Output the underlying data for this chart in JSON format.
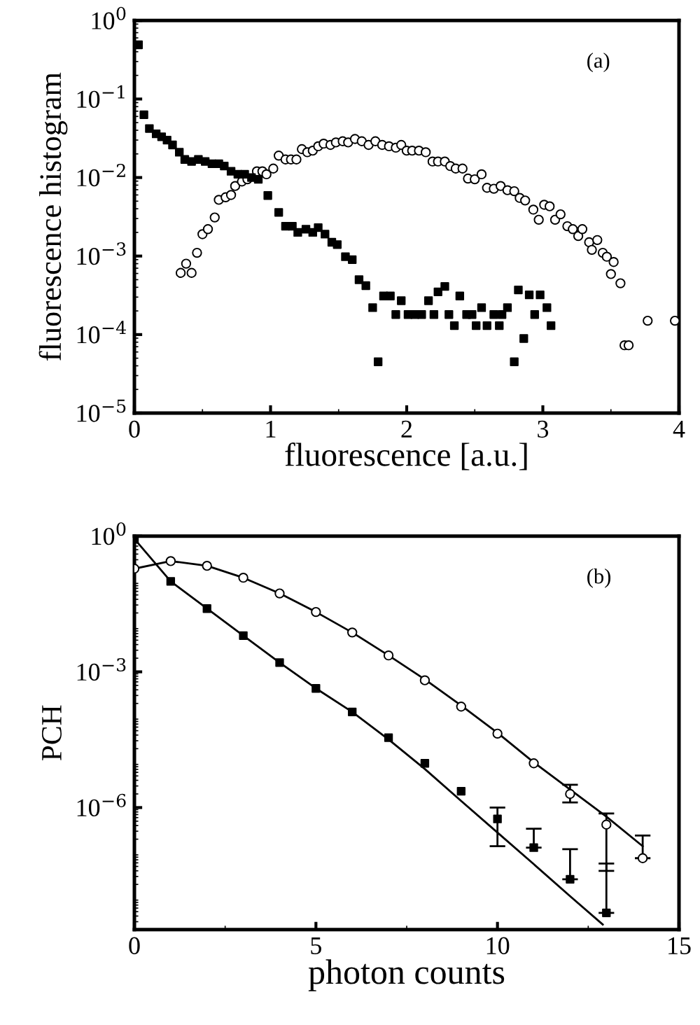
{
  "chart_data": [
    {
      "type": "scatter",
      "xlabel": "fluorescence [a.u.]",
      "ylabel": "fluorescence histogram",
      "annotations": [
        "(a)"
      ],
      "log": "y",
      "xlim": [
        0,
        4
      ],
      "ylim": [
        1e-05,
        1
      ],
      "xticks": [
        0,
        1,
        2,
        3,
        4
      ],
      "yticks": [
        {
          "value": 1,
          "label": "10$^{0}$"
        },
        {
          "value": 0.1,
          "label": "10$^{−1}$"
        },
        {
          "value": 0.01,
          "label": "10$^{−2}$"
        },
        {
          "value": 0.001,
          "label": "10$^{−3}$"
        },
        {
          "value": 0.0001,
          "label": "10$^{−4}$"
        },
        {
          "value": 1e-05,
          "label": "10$^{−5}$"
        }
      ],
      "grid": false,
      "legend": false,
      "series": [
        {
          "color": "#000000",
          "marker": "square",
          "x": [
            0.03,
            0.07,
            0.11,
            0.16,
            0.2,
            0.24,
            0.28,
            0.33,
            0.37,
            0.42,
            0.47,
            0.52,
            0.57,
            0.62,
            0.66,
            0.71,
            0.76,
            0.81,
            0.86,
            0.91,
            0.98,
            1.06,
            1.11,
            1.16,
            1.2,
            1.26,
            1.31,
            1.35,
            1.4,
            1.45,
            1.49,
            1.55,
            1.6,
            1.65,
            1.7,
            1.75,
            1.79,
            1.83,
            1.88,
            1.92,
            1.96,
            2.01,
            2.06,
            2.11,
            2.16,
            2.2,
            2.23,
            2.28,
            2.31,
            2.35,
            2.39,
            2.44,
            2.48,
            2.51,
            2.55,
            2.59,
            2.64,
            2.68,
            2.7,
            2.74,
            2.79,
            2.82,
            2.86,
            2.9,
            2.94,
            2.98,
            3.03,
            3.06
          ],
          "values": [
            0.49,
            0.063,
            0.042,
            0.036,
            0.033,
            0.03,
            0.026,
            0.021,
            0.017,
            0.016,
            0.017,
            0.016,
            0.015,
            0.015,
            0.014,
            0.012,
            0.011,
            0.011,
            0.01,
            0.0095,
            0.0059,
            0.0036,
            0.0024,
            0.0024,
            0.002,
            0.0022,
            0.002,
            0.0023,
            0.0019,
            0.0015,
            0.0014,
            0.00098,
            0.0009,
            0.0005,
            0.00042,
            0.00022,
            4.5e-05,
            0.00031,
            0.00031,
            0.00018,
            0.00027,
            0.00018,
            0.00018,
            0.00018,
            0.00027,
            0.00018,
            0.00035,
            0.00041,
            0.00018,
            0.00013,
            0.00031,
            0.00018,
            0.00018,
            0.00013,
            0.00022,
            0.00013,
            0.00018,
            0.00013,
            0.00018,
            0.00022,
            4.5e-05,
            0.00037,
            8.9e-05,
            0.00032,
            0.00018,
            0.00032,
            0.00022,
            0.00013
          ]
        },
        {
          "color": "#000000",
          "marker": "circle",
          "x": [
            0.34,
            0.38,
            0.42,
            0.46,
            0.5,
            0.54,
            0.59,
            0.62,
            0.67,
            0.71,
            0.74,
            0.79,
            0.83,
            0.9,
            0.94,
            0.97,
            1.02,
            1.06,
            1.11,
            1.15,
            1.19,
            1.23,
            1.27,
            1.31,
            1.35,
            1.39,
            1.44,
            1.48,
            1.53,
            1.57,
            1.62,
            1.67,
            1.72,
            1.77,
            1.82,
            1.87,
            1.92,
            1.96,
            2.0,
            2.04,
            2.09,
            2.14,
            2.19,
            2.23,
            2.28,
            2.32,
            2.36,
            2.41,
            2.45,
            2.5,
            2.55,
            2.59,
            2.64,
            2.69,
            2.74,
            2.79,
            2.83,
            2.87,
            2.93,
            2.97,
            3.01,
            3.05,
            3.09,
            3.13,
            3.18,
            3.22,
            3.26,
            3.29,
            3.34,
            3.36,
            3.4,
            3.44,
            3.47,
            3.5,
            3.52,
            3.57,
            3.6,
            3.63,
            3.77,
            3.97
          ],
          "values": [
            0.00061,
            0.0008,
            0.00061,
            0.0011,
            0.0019,
            0.0022,
            0.0031,
            0.0052,
            0.0056,
            0.006,
            0.0078,
            0.0089,
            0.0095,
            0.012,
            0.012,
            0.011,
            0.013,
            0.019,
            0.017,
            0.017,
            0.017,
            0.023,
            0.021,
            0.022,
            0.025,
            0.027,
            0.026,
            0.028,
            0.029,
            0.028,
            0.031,
            0.029,
            0.026,
            0.029,
            0.026,
            0.025,
            0.024,
            0.026,
            0.022,
            0.022,
            0.022,
            0.021,
            0.016,
            0.016,
            0.016,
            0.014,
            0.013,
            0.013,
            0.0097,
            0.0095,
            0.011,
            0.0074,
            0.0072,
            0.0078,
            0.0069,
            0.0067,
            0.0055,
            0.0051,
            0.0039,
            0.0029,
            0.0045,
            0.0043,
            0.0029,
            0.0034,
            0.0024,
            0.0022,
            0.0018,
            0.0022,
            0.0015,
            0.0012,
            0.0016,
            0.0011,
            0.00098,
            0.00059,
            0.00084,
            0.00045,
            7.3e-05,
            7.3e-05,
            0.00015,
            0.00015
          ]
        }
      ]
    },
    {
      "type": "scatter",
      "xlabel": "photon counts",
      "ylabel": "PCH",
      "annotations": [
        "(b)"
      ],
      "log": "y",
      "xlim": [
        0,
        15
      ],
      "ylim": [
        2e-09,
        1
      ],
      "xticks": [
        0,
        5,
        10,
        15
      ],
      "yticks": [
        {
          "value": 1,
          "label": "10$^{0}$"
        },
        {
          "value": 0.001,
          "label": "10$^{−3}$"
        },
        {
          "value": 1e-06,
          "label": "10$^{−6}$"
        }
      ],
      "grid": false,
      "legend": false,
      "series": [
        {
          "type": "line",
          "color": "#000000",
          "marker": "none",
          "x": [
            0,
            1,
            2,
            3,
            4,
            5,
            6,
            7,
            8,
            9,
            10,
            11,
            12,
            13,
            14
          ],
          "values": [
            0.19,
            0.28,
            0.22,
            0.12,
            0.054,
            0.021,
            0.0074,
            0.0023,
            0.00068,
            0.00018,
            4.5e-05,
            1e-05,
            2.5e-06,
            6.3e-07,
            1.4e-07
          ]
        },
        {
          "type": "line",
          "color": "#000000",
          "marker": "none",
          "x": [
            0,
            1,
            2,
            3,
            4,
            5,
            6,
            7,
            8,
            9,
            10,
            11,
            12,
            12.9
          ],
          "values": [
            0.87,
            0.1,
            0.025,
            0.0063,
            0.0016,
            0.00043,
            0.00013,
            3.2e-05,
            7.1e-06,
            1.4e-06,
            2.8e-07,
            5.6e-08,
            1.1e-08,
            2.6e-09
          ]
        },
        {
          "color": "#000000",
          "marker": "circle",
          "x": [
            0,
            1,
            2,
            3,
            4,
            5,
            6,
            7,
            8,
            9,
            10,
            11,
            12,
            13,
            14
          ],
          "values": [
            0.19,
            0.28,
            0.22,
            0.12,
            0.054,
            0.021,
            0.0074,
            0.0023,
            0.00065,
            0.00017,
            4.3e-05,
            9.5e-06,
            2e-06,
            4.2e-07,
            7.6e-08
          ],
          "errors": [
            null,
            null,
            null,
            null,
            null,
            null,
            null,
            null,
            null,
            null,
            null,
            null,
            [
              1.3e-06,
              3.2e-06
            ],
            [
              4e-08,
              7.4e-07
            ],
            [
              7.6e-08,
              2.4e-07
            ]
          ]
        },
        {
          "color": "#000000",
          "marker": "square",
          "x": [
            0,
            1,
            2,
            3,
            4,
            5,
            6,
            7,
            8,
            9,
            10,
            11,
            12,
            13
          ],
          "values": [
            0.87,
            0.1,
            0.025,
            0.0063,
            0.0016,
            0.00043,
            0.00013,
            3.5e-05,
            9.5e-06,
            2.3e-06,
            5.6e-07,
            1.3e-07,
            2.6e-08,
            4.7e-09
          ],
          "errors": [
            null,
            null,
            null,
            null,
            null,
            null,
            null,
            null,
            null,
            null,
            [
              1.4e-07,
              1e-06
            ],
            [
              1.3e-07,
              3.4e-07
            ],
            [
              2.6e-08,
              1.2e-07
            ],
            [
              4.7e-09,
              5.8e-08
            ]
          ]
        }
      ]
    }
  ]
}
